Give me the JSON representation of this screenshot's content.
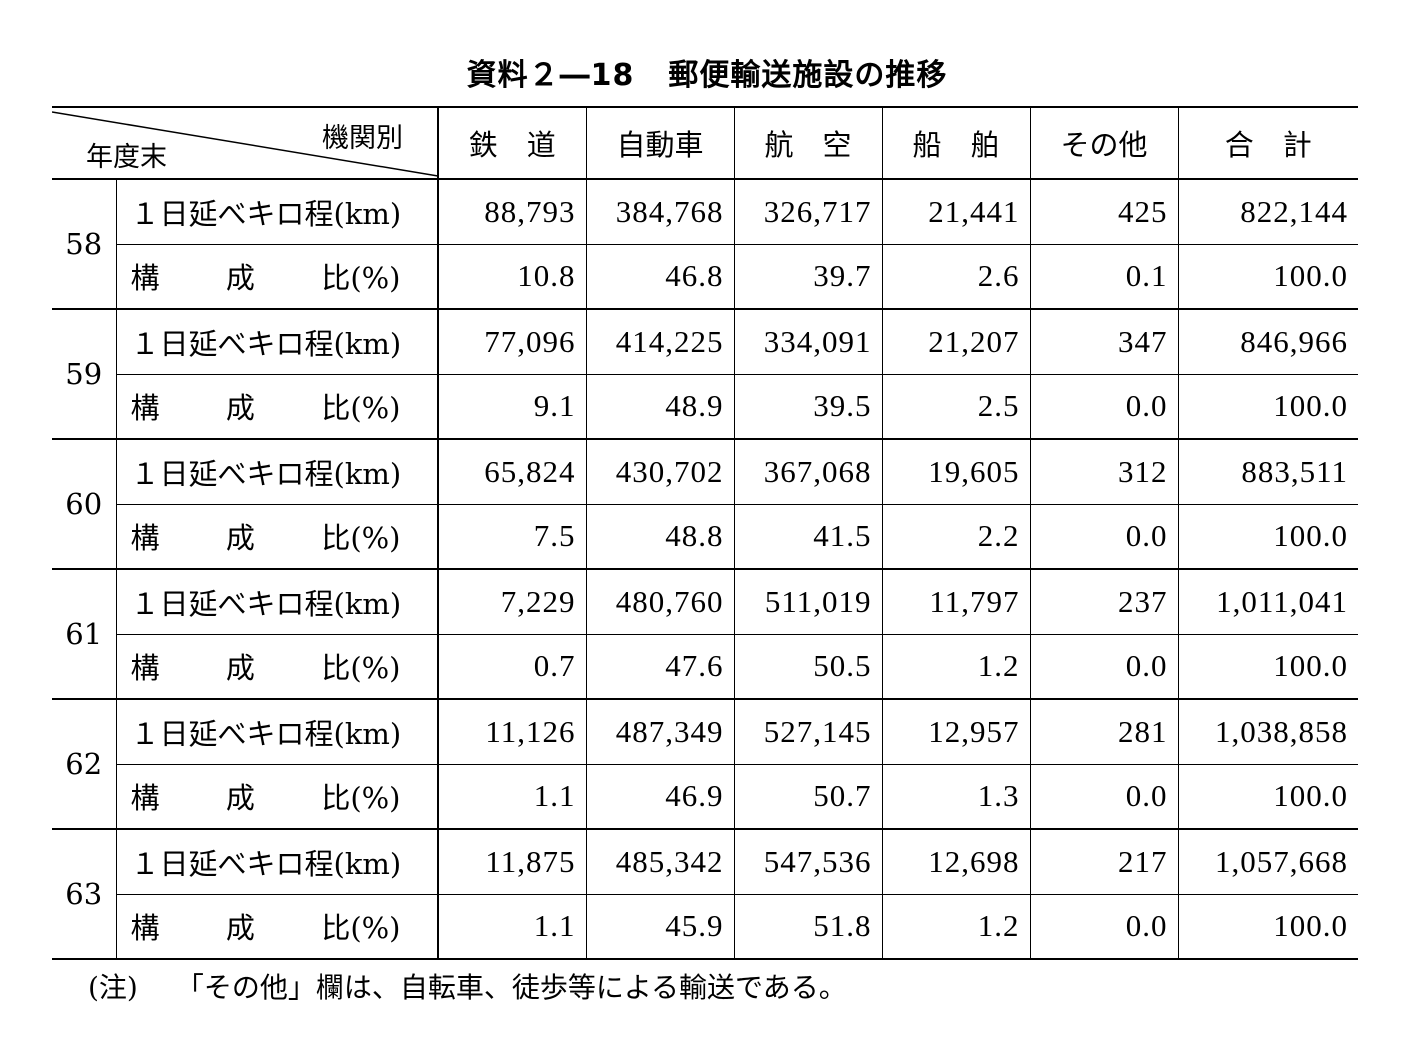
{
  "title": {
    "left": "資料２―18",
    "right": "郵便輸送施設の推移"
  },
  "header": {
    "corner_top": "機関別",
    "corner_bottom": "年度末",
    "columns": [
      "鉄　道",
      "自動車",
      "航　空",
      "船　舶",
      "その他",
      "合　計"
    ]
  },
  "row_labels": {
    "km": "１日延べキロ程(km)",
    "ratio_a": "構",
    "ratio_b": "成",
    "ratio_c": "比(%)"
  },
  "years": [
    {
      "year": "58",
      "km": [
        "88,793",
        "384,768",
        "326,717",
        "21,441",
        "425",
        "822,144"
      ],
      "ratio": [
        "10.8",
        "46.8",
        "39.7",
        "2.6",
        "0.1",
        "100.0"
      ]
    },
    {
      "year": "59",
      "km": [
        "77,096",
        "414,225",
        "334,091",
        "21,207",
        "347",
        "846,966"
      ],
      "ratio": [
        "9.1",
        "48.9",
        "39.5",
        "2.5",
        "0.0",
        "100.0"
      ]
    },
    {
      "year": "60",
      "km": [
        "65,824",
        "430,702",
        "367,068",
        "19,605",
        "312",
        "883,511"
      ],
      "ratio": [
        "7.5",
        "48.8",
        "41.5",
        "2.2",
        "0.0",
        "100.0"
      ]
    },
    {
      "year": "61",
      "km": [
        "7,229",
        "480,760",
        "511,019",
        "11,797",
        "237",
        "1,011,041"
      ],
      "ratio": [
        "0.7",
        "47.6",
        "50.5",
        "1.2",
        "0.0",
        "100.0"
      ]
    },
    {
      "year": "62",
      "km": [
        "11,126",
        "487,349",
        "527,145",
        "12,957",
        "281",
        "1,038,858"
      ],
      "ratio": [
        "1.1",
        "46.9",
        "50.7",
        "1.3",
        "0.0",
        "100.0"
      ]
    },
    {
      "year": "63",
      "km": [
        "11,875",
        "485,342",
        "547,536",
        "12,698",
        "217",
        "1,057,668"
      ],
      "ratio": [
        "1.1",
        "45.9",
        "51.8",
        "1.2",
        "0.0",
        "100.0"
      ]
    }
  ],
  "note": {
    "label": "(注)",
    "text": "「その他」欄は、自転車、徒歩等による輸送である。"
  }
}
